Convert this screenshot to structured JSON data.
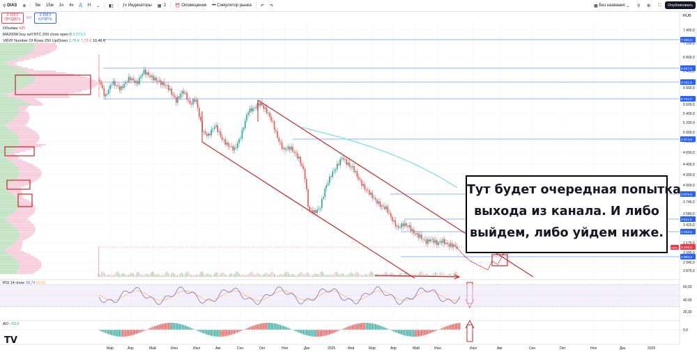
{
  "toolbar": {
    "symbol": "DIAS",
    "intervals": [
      "5м",
      "15м",
      "1ч",
      "4ч",
      "Д",
      "Н"
    ],
    "indicators_label": "Индикаторы",
    "layouts_count": "2",
    "alerts_label": "Оповещения",
    "replay_label": "Симулятор рынка",
    "layout_name": "Без названия",
    "publish_label": "Опубликовать"
  },
  "trade": {
    "sell_price": "3 108,0",
    "sell_label": "ПРОДАТЬ",
    "spread": "0,0",
    "buy_price": "3 108,0",
    "buy_label": "КУПИТЬ"
  },
  "legend": {
    "volume": "Объёмы",
    "volume_val": "485",
    "ma": "MA200W buy sell BTC 200 close open 0",
    "ma_val": "3 973,0",
    "vrvp": "VRVP Number Of Rows 250 Up/Down",
    "vrvp_up": "2,76 К",
    "vrvp_down": "7,72 К",
    "vrvp_total": "10,48 К"
  },
  "rsi": {
    "label": "RSI 14 close",
    "val1": "38,74",
    "val2": "40,86"
  },
  "ao": {
    "label": "AO",
    "val": "−59,5"
  },
  "currency": "RUB",
  "annotation": {
    "line1": "Тут будет очередная попытка",
    "line2": "выхода из канала. И либо",
    "line3": "выйдем, либо уйдем ниже."
  },
  "logo": "TV",
  "price_labels": [
    "7 400,0",
    "7 200,0",
    "6 800,0",
    "6 400,0",
    "6 000,0",
    "5 600,0",
    "5 400,0",
    "5 200,0",
    "5 000,0",
    "4 800,0",
    "4 600,0",
    "4 400,0",
    "4 200,0",
    "4 000,0",
    "3 740,0",
    "3 580,0",
    "3 420,0",
    "3 175,0",
    "3 095,0",
    "2 945,0",
    "2 875,0"
  ],
  "level_tags": [
    "7 250,0",
    "6 527,5",
    "6 131,5",
    "5 711,0",
    "4 874,5",
    "3 879,5",
    "3 511,5",
    "3 263,5",
    "2 893,0"
  ],
  "current_price_tag": "3 108,0",
  "rsi_ticks": [
    "60,00",
    "40,00",
    "20,00"
  ],
  "ao_ticks": [
    "0,0"
  ],
  "time_labels": [
    "Мар",
    "Апр",
    "Май",
    "Июн",
    "Июл",
    "Авг",
    "Сен",
    "Окт",
    "Ноя",
    "Дек",
    "2025",
    "Фев",
    "Мар",
    "Апр",
    "Май",
    "Июн",
    "Июл",
    "Авг",
    "Сен",
    "Окт",
    "Ноя",
    "Дек",
    "2026"
  ],
  "colors": {
    "up": "#26a69a",
    "down": "#ef5350",
    "channel": "#c62828",
    "level": "#2962ff",
    "ma": "#80deea",
    "rsi": "#7e57c2",
    "rsi_signal": "#ffb74d"
  }
}
